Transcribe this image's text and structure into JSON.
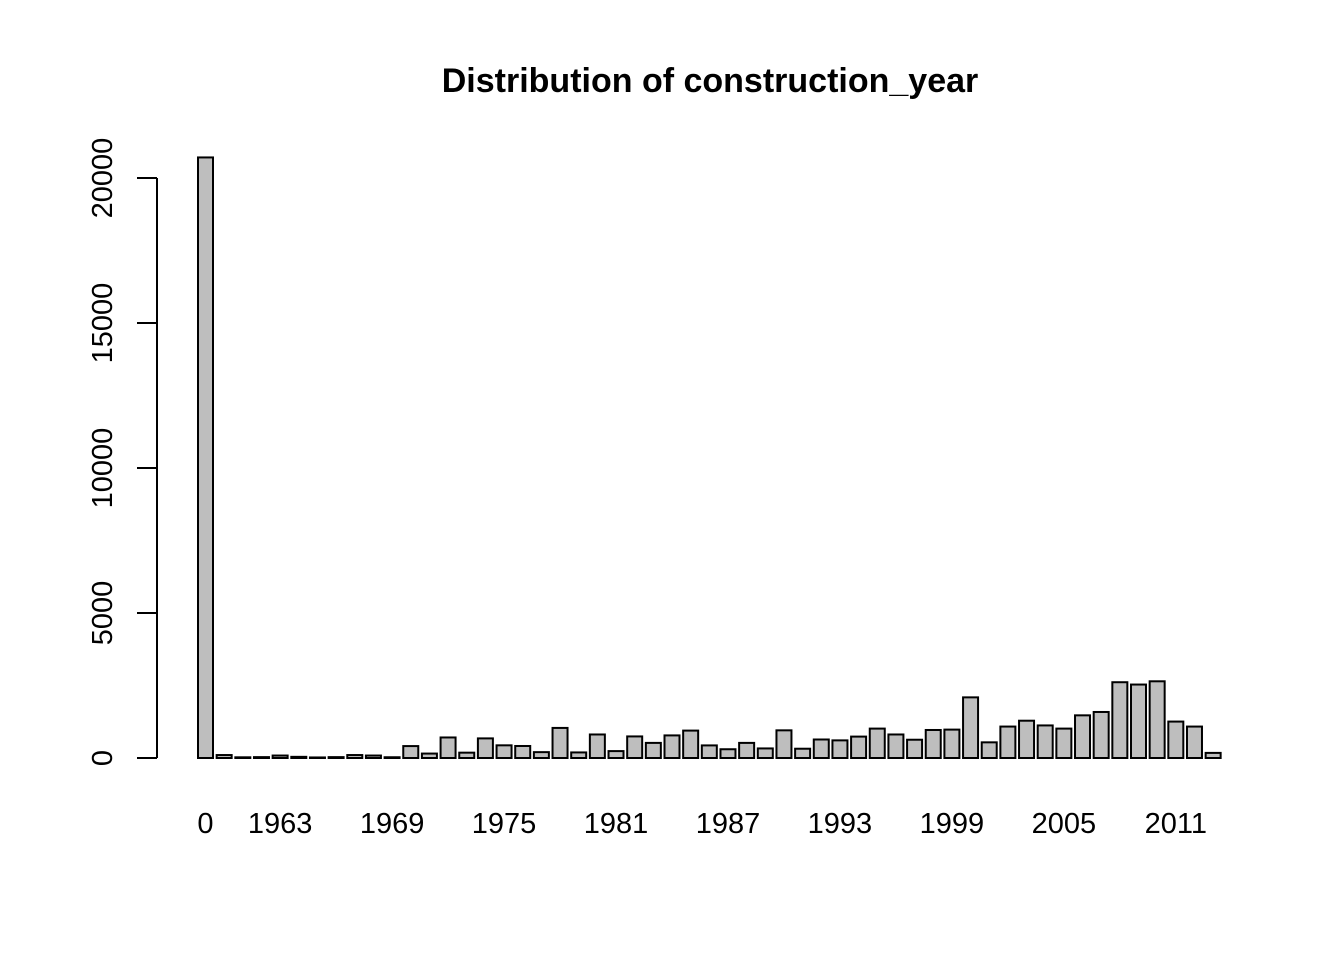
{
  "chart_data": {
    "type": "bar",
    "title": "Distribution of construction_year",
    "xlabel": "",
    "ylabel": "",
    "ylim": [
      0,
      21000
    ],
    "y_ticks": [
      0,
      5000,
      10000,
      15000,
      20000
    ],
    "grid": false,
    "bar_fill": "#bebebe",
    "bar_stroke": "#000000",
    "categories": [
      "0",
      "1960",
      "1961",
      "1962",
      "1963",
      "1964",
      "1965",
      "1966",
      "1967",
      "1968",
      "1969",
      "1970",
      "1971",
      "1972",
      "1973",
      "1974",
      "1975",
      "1976",
      "1977",
      "1978",
      "1979",
      "1980",
      "1981",
      "1982",
      "1983",
      "1984",
      "1985",
      "1986",
      "1987",
      "1988",
      "1989",
      "1990",
      "1991",
      "1992",
      "1993",
      "1994",
      "1995",
      "1996",
      "1997",
      "1998",
      "1999",
      "2000",
      "2001",
      "2002",
      "2003",
      "2004",
      "2005",
      "2006",
      "2007",
      "2008",
      "2009",
      "2010",
      "2011",
      "2012",
      "2013"
    ],
    "values": [
      20709,
      102,
      24,
      30,
      85,
      40,
      19,
      30,
      102,
      85,
      26,
      411,
      153,
      708,
      184,
      676,
      437,
      414,
      202,
      1037,
      192,
      811,
      238,
      744,
      521,
      779,
      945,
      434,
      302,
      521,
      330,
      954,
      320,
      638,
      608,
      738,
      1014,
      811,
      630,
      966,
      979,
      2091,
      540,
      1084,
      1286,
      1123,
      1014,
      1471,
      1587,
      2613,
      2533,
      2645,
      1256,
      1084,
      176
    ],
    "tick_labels": [
      "0",
      "1963",
      "1969",
      "1975",
      "1981",
      "1987",
      "1993",
      "1999",
      "2005",
      "2011"
    ]
  }
}
